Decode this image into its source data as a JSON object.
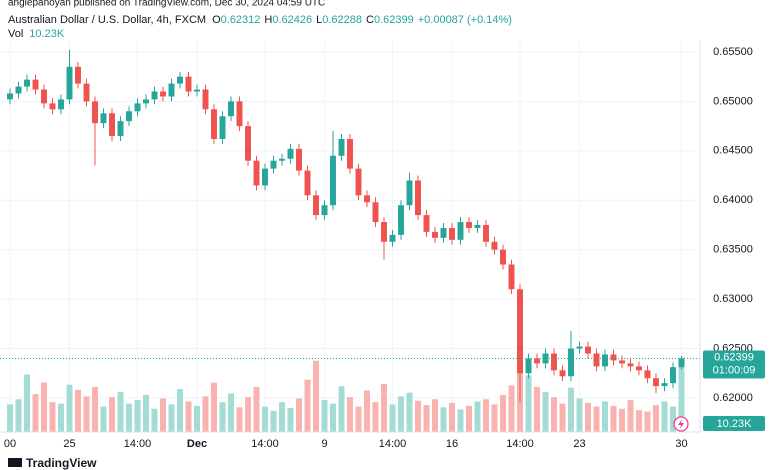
{
  "header": {
    "publisher": "anglepanoyan published on TradingView.com, Dec 30, 2024 04:59 UTC",
    "symbol": "Australian Dollar / U.S. Dollar, 4h, FXCM",
    "ohlc_keys": [
      "O",
      "H",
      "L",
      "C"
    ],
    "change": "+0.00087 (+0.14%)",
    "vol_key": "Vol",
    "countdown": "01:00:09",
    "footer": "TradingView"
  },
  "chart_data": {
    "type": "candlestick",
    "categories": [
      "00",
      null,
      null,
      null,
      null,
      null,
      null,
      "25",
      null,
      null,
      null,
      null,
      null,
      null,
      null,
      "14:00",
      null,
      null,
      null,
      null,
      null,
      null,
      "Dec",
      null,
      null,
      null,
      null,
      null,
      null,
      null,
      "14:00",
      null,
      null,
      null,
      null,
      null,
      null,
      "9",
      null,
      null,
      null,
      null,
      null,
      null,
      null,
      "14:00",
      null,
      null,
      null,
      null,
      null,
      null,
      "16",
      null,
      null,
      null,
      null,
      null,
      null,
      null,
      "14:00",
      null,
      null,
      null,
      null,
      null,
      null,
      "23",
      null,
      null,
      null,
      null,
      null,
      null,
      null,
      null,
      null,
      null,
      null,
      "30"
    ],
    "open": [
      0.6502,
      0.6508,
      0.6515,
      0.6522,
      0.6512,
      0.6498,
      0.6492,
      0.6502,
      0.6535,
      0.6518,
      0.65,
      0.6478,
      0.6488,
      0.6465,
      0.648,
      0.649,
      0.6498,
      0.6502,
      0.651,
      0.6505,
      0.6518,
      0.6525,
      0.651,
      0.6512,
      0.6492,
      0.6462,
      0.6485,
      0.65,
      0.6475,
      0.644,
      0.6415,
      0.6432,
      0.644,
      0.6442,
      0.6452,
      0.643,
      0.6405,
      0.6385,
      0.6395,
      0.6445,
      0.6462,
      0.6432,
      0.6405,
      0.6398,
      0.6378,
      0.6358,
      0.6365,
      0.6395,
      0.642,
      0.6385,
      0.6368,
      0.6362,
      0.6372,
      0.636,
      0.6378,
      0.6372,
      0.6375,
      0.6358,
      0.635,
      0.6335,
      0.631,
      0.6225,
      0.624,
      0.6235,
      0.6245,
      0.6228,
      0.6222,
      0.625,
      0.6252,
      0.6245,
      0.6232,
      0.6244,
      0.6238,
      0.6235,
      0.6232,
      0.6228,
      0.622,
      0.6212,
      0.6215,
      0.62312
    ],
    "high": [
      0.6513,
      0.652,
      0.6527,
      0.6527,
      0.6517,
      0.6503,
      0.6507,
      0.6552,
      0.654,
      0.6523,
      0.6505,
      0.6493,
      0.6493,
      0.6485,
      0.6495,
      0.6503,
      0.6507,
      0.6515,
      0.6515,
      0.6523,
      0.653,
      0.653,
      0.6517,
      0.6517,
      0.6497,
      0.649,
      0.6505,
      0.6505,
      0.648,
      0.6445,
      0.6437,
      0.6445,
      0.6447,
      0.6457,
      0.6457,
      0.6435,
      0.641,
      0.64,
      0.647,
      0.6467,
      0.6467,
      0.6437,
      0.641,
      0.6403,
      0.6383,
      0.637,
      0.64,
      0.6428,
      0.6425,
      0.639,
      0.6373,
      0.6377,
      0.6377,
      0.6383,
      0.6383,
      0.638,
      0.638,
      0.6363,
      0.6355,
      0.634,
      0.6315,
      0.6245,
      0.6245,
      0.625,
      0.625,
      0.6233,
      0.6268,
      0.6257,
      0.6257,
      0.625,
      0.6249,
      0.6249,
      0.6243,
      0.624,
      0.6237,
      0.6233,
      0.6225,
      0.622,
      0.6236,
      0.62426
    ],
    "low": [
      0.6497,
      0.6503,
      0.651,
      0.6507,
      0.6493,
      0.6487,
      0.6487,
      0.6497,
      0.6513,
      0.6495,
      0.6435,
      0.6473,
      0.646,
      0.646,
      0.6475,
      0.6485,
      0.6493,
      0.6497,
      0.65,
      0.65,
      0.6513,
      0.6505,
      0.6505,
      0.6487,
      0.6457,
      0.6457,
      0.648,
      0.647,
      0.6435,
      0.641,
      0.641,
      0.6427,
      0.6435,
      0.6437,
      0.6425,
      0.64,
      0.638,
      0.638,
      0.639,
      0.644,
      0.6427,
      0.64,
      0.6393,
      0.6373,
      0.634,
      0.6353,
      0.636,
      0.639,
      0.638,
      0.6363,
      0.6357,
      0.6357,
      0.6355,
      0.6355,
      0.6367,
      0.6367,
      0.6353,
      0.6345,
      0.633,
      0.6305,
      0.6195,
      0.622,
      0.623,
      0.623,
      0.6223,
      0.6217,
      0.6217,
      0.6245,
      0.624,
      0.6227,
      0.6227,
      0.6233,
      0.623,
      0.6227,
      0.6223,
      0.6215,
      0.6205,
      0.6207,
      0.621,
      0.62288
    ],
    "close": [
      0.6508,
      0.6515,
      0.6522,
      0.6512,
      0.6498,
      0.6492,
      0.6502,
      0.6535,
      0.6518,
      0.65,
      0.6478,
      0.6488,
      0.6465,
      0.648,
      0.649,
      0.6498,
      0.6502,
      0.651,
      0.6505,
      0.6518,
      0.6525,
      0.651,
      0.6512,
      0.6492,
      0.6462,
      0.6485,
      0.65,
      0.6475,
      0.644,
      0.6415,
      0.6432,
      0.644,
      0.6442,
      0.6452,
      0.643,
      0.6405,
      0.6385,
      0.6395,
      0.6445,
      0.6462,
      0.6432,
      0.6405,
      0.6398,
      0.6378,
      0.6358,
      0.6365,
      0.6395,
      0.642,
      0.6385,
      0.6368,
      0.6362,
      0.6372,
      0.636,
      0.6378,
      0.6372,
      0.6375,
      0.6358,
      0.635,
      0.6335,
      0.631,
      0.6225,
      0.624,
      0.6235,
      0.6245,
      0.6228,
      0.6222,
      0.625,
      0.6252,
      0.6245,
      0.6232,
      0.6244,
      0.6238,
      0.6235,
      0.6232,
      0.6228,
      0.622,
      0.6212,
      0.6215,
      0.62312,
      0.62399
    ],
    "volume": [
      3.8,
      4.5,
      7.9,
      5.2,
      6.8,
      4.1,
      3.9,
      6.5,
      5.8,
      4.9,
      6.2,
      3.5,
      4.8,
      5.5,
      3.9,
      4.4,
      5.1,
      3.2,
      4.6,
      3.8,
      5.9,
      4.2,
      3.6,
      4.9,
      6.8,
      4.1,
      5.3,
      3.4,
      4.8,
      6.2,
      3.5,
      2.9,
      4.1,
      3.3,
      4.6,
      7.2,
      9.8,
      4.4,
      3.9,
      6.3,
      4.8,
      3.5,
      5.7,
      4.1,
      6.6,
      3.8,
      4.9,
      5.4,
      4.3,
      3.7,
      4.5,
      3.4,
      4.0,
      3.1,
      3.6,
      4.2,
      4.5,
      3.8,
      5.1,
      6.4,
      9.6,
      7.8,
      6.2,
      5.5,
      4.8,
      3.9,
      6.1,
      4.6,
      4.0,
      3.5,
      4.2,
      3.6,
      3.2,
      4.4,
      3.0,
      2.8,
      3.7,
      4.2,
      3.5,
      10.23
    ],
    "volume_last_label": "10.23K",
    "volume_ylim": [
      0,
      11
    ],
    "ylim": [
      0.61656,
      0.65621
    ],
    "yticks": [
      {
        "value": 0.655,
        "label": "0.65500"
      },
      {
        "value": 0.65,
        "label": "0.65000"
      },
      {
        "value": 0.645,
        "label": "0.64500"
      },
      {
        "value": 0.64,
        "label": "0.64000"
      },
      {
        "value": 0.635,
        "label": "0.63500"
      },
      {
        "value": 0.63,
        "label": "0.63000"
      },
      {
        "value": 0.625,
        "label": "0.62500"
      },
      {
        "value": 0.62,
        "label": "0.62000"
      }
    ],
    "up_color": "#26a69a",
    "down_color": "#ef5350",
    "volume_up_color": "#a3dbd5",
    "volume_down_color": "#f9b2b0",
    "grid": true
  }
}
